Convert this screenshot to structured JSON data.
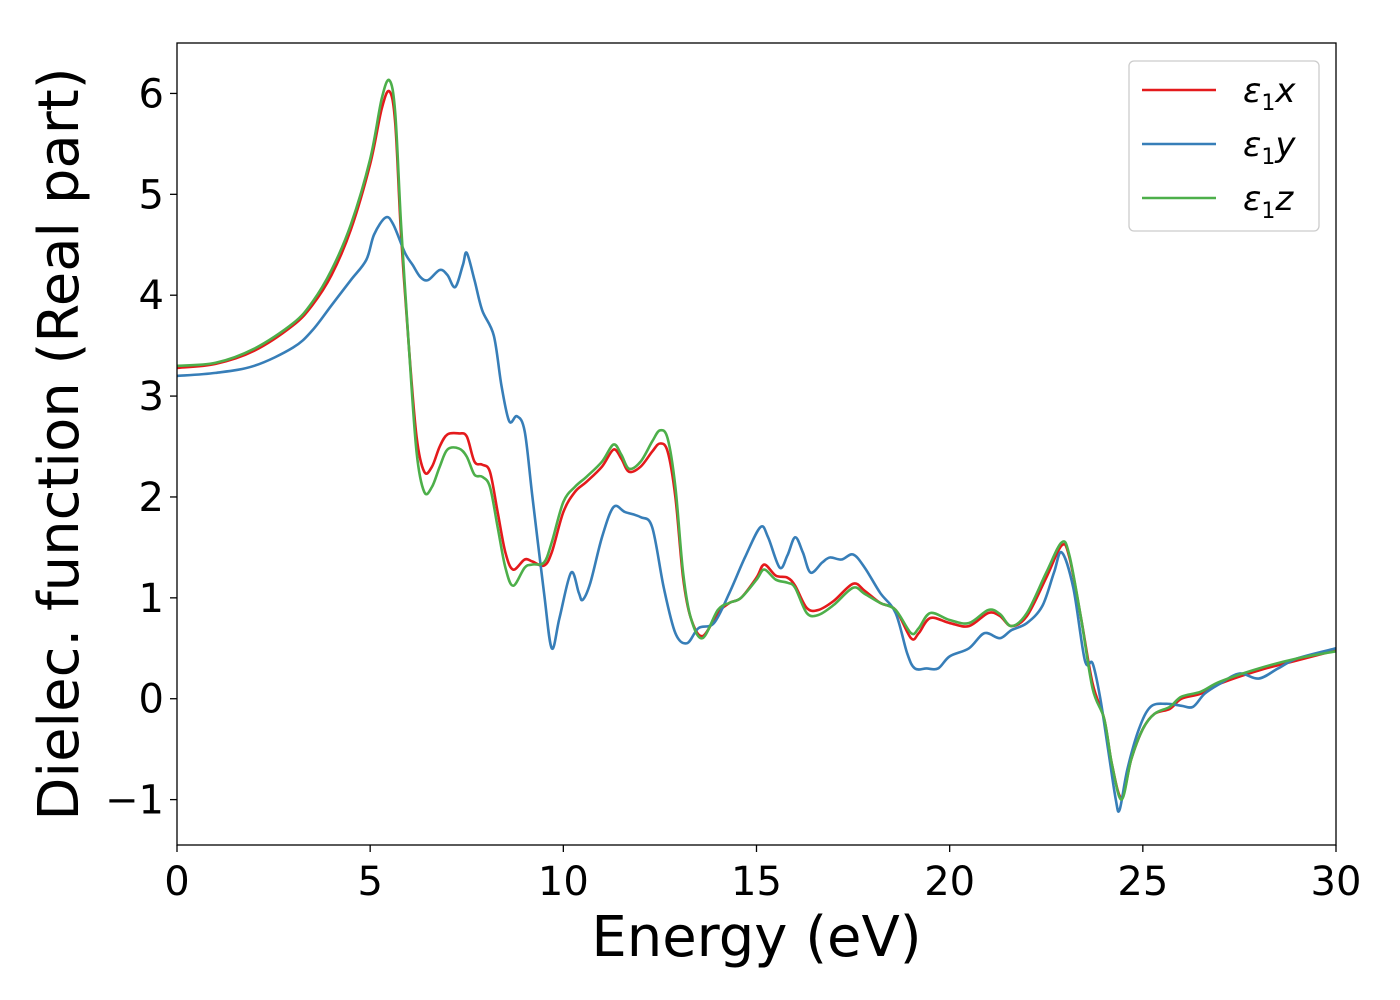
{
  "chart_data": {
    "type": "line",
    "title": "",
    "xlabel": "Energy (eV)",
    "ylabel": "Dielec. function (Real part)",
    "xlim": [
      0,
      30
    ],
    "ylim": [
      -1.45,
      6.5
    ],
    "xticks": [
      0,
      5,
      10,
      15,
      20,
      25,
      30
    ],
    "xtick_labels": [
      "0",
      "5",
      "10",
      "15",
      "20",
      "25",
      "30"
    ],
    "yticks": [
      -1,
      0,
      1,
      2,
      3,
      4,
      5,
      6
    ],
    "ytick_labels": [
      "−1",
      "0",
      "1",
      "2",
      "3",
      "4",
      "5",
      "6"
    ],
    "grid": false,
    "legend_position": "top-right",
    "series": [
      {
        "name": "ε1x",
        "legend_base": "ε",
        "legend_sub": "1",
        "legend_tail": "x",
        "color": "#e41a1c",
        "points": [
          [
            0,
            3.28
          ],
          [
            1,
            3.32
          ],
          [
            2,
            3.45
          ],
          [
            3,
            3.7
          ],
          [
            3.5,
            3.9
          ],
          [
            4,
            4.2
          ],
          [
            4.5,
            4.65
          ],
          [
            5,
            5.3
          ],
          [
            5.3,
            5.85
          ],
          [
            5.5,
            6.02
          ],
          [
            5.65,
            5.7
          ],
          [
            5.8,
            4.6
          ],
          [
            6.0,
            3.5
          ],
          [
            6.2,
            2.6
          ],
          [
            6.4,
            2.25
          ],
          [
            6.6,
            2.3
          ],
          [
            6.8,
            2.5
          ],
          [
            7.0,
            2.62
          ],
          [
            7.3,
            2.63
          ],
          [
            7.5,
            2.6
          ],
          [
            7.7,
            2.35
          ],
          [
            7.9,
            2.32
          ],
          [
            8.1,
            2.25
          ],
          [
            8.3,
            1.85
          ],
          [
            8.5,
            1.45
          ],
          [
            8.7,
            1.28
          ],
          [
            9.0,
            1.38
          ],
          [
            9.2,
            1.36
          ],
          [
            9.5,
            1.32
          ],
          [
            9.7,
            1.45
          ],
          [
            10.0,
            1.85
          ],
          [
            10.3,
            2.05
          ],
          [
            10.6,
            2.15
          ],
          [
            11.0,
            2.3
          ],
          [
            11.3,
            2.47
          ],
          [
            11.5,
            2.38
          ],
          [
            11.7,
            2.25
          ],
          [
            12.0,
            2.3
          ],
          [
            12.3,
            2.45
          ],
          [
            12.5,
            2.53
          ],
          [
            12.7,
            2.45
          ],
          [
            12.9,
            2.0
          ],
          [
            13.1,
            1.2
          ],
          [
            13.3,
            0.8
          ],
          [
            13.6,
            0.62
          ],
          [
            14.0,
            0.85
          ],
          [
            14.3,
            0.95
          ],
          [
            14.6,
            1.0
          ],
          [
            15.0,
            1.2
          ],
          [
            15.2,
            1.33
          ],
          [
            15.5,
            1.22
          ],
          [
            15.8,
            1.2
          ],
          [
            16.0,
            1.12
          ],
          [
            16.3,
            0.9
          ],
          [
            16.6,
            0.88
          ],
          [
            17.0,
            0.97
          ],
          [
            17.5,
            1.14
          ],
          [
            17.8,
            1.07
          ],
          [
            18.2,
            0.95
          ],
          [
            18.6,
            0.88
          ],
          [
            19.0,
            0.6
          ],
          [
            19.2,
            0.65
          ],
          [
            19.5,
            0.8
          ],
          [
            20.0,
            0.75
          ],
          [
            20.5,
            0.72
          ],
          [
            21.0,
            0.85
          ],
          [
            21.3,
            0.82
          ],
          [
            21.6,
            0.72
          ],
          [
            22.0,
            0.82
          ],
          [
            22.5,
            1.2
          ],
          [
            22.9,
            1.52
          ],
          [
            23.1,
            1.4
          ],
          [
            23.4,
            0.8
          ],
          [
            23.7,
            0.15
          ],
          [
            24.0,
            -0.2
          ],
          [
            24.2,
            -0.65
          ],
          [
            24.45,
            -0.98
          ],
          [
            24.7,
            -0.6
          ],
          [
            25.0,
            -0.3
          ],
          [
            25.3,
            -0.15
          ],
          [
            25.7,
            -0.1
          ],
          [
            26.0,
            0.0
          ],
          [
            26.5,
            0.05
          ],
          [
            27.0,
            0.15
          ],
          [
            28.0,
            0.28
          ],
          [
            29.0,
            0.38
          ],
          [
            30.0,
            0.48
          ]
        ]
      },
      {
        "name": "ε1y",
        "legend_base": "ε",
        "legend_sub": "1",
        "legend_tail": "y",
        "color": "#377eb8",
        "points": [
          [
            0,
            3.2
          ],
          [
            1,
            3.23
          ],
          [
            2,
            3.3
          ],
          [
            3,
            3.48
          ],
          [
            3.5,
            3.65
          ],
          [
            4,
            3.9
          ],
          [
            4.5,
            4.15
          ],
          [
            4.9,
            4.35
          ],
          [
            5.1,
            4.6
          ],
          [
            5.4,
            4.77
          ],
          [
            5.6,
            4.7
          ],
          [
            5.9,
            4.42
          ],
          [
            6.1,
            4.3
          ],
          [
            6.3,
            4.18
          ],
          [
            6.5,
            4.15
          ],
          [
            6.8,
            4.25
          ],
          [
            7.0,
            4.2
          ],
          [
            7.2,
            4.08
          ],
          [
            7.4,
            4.3
          ],
          [
            7.5,
            4.42
          ],
          [
            7.7,
            4.15
          ],
          [
            7.9,
            3.85
          ],
          [
            8.2,
            3.6
          ],
          [
            8.4,
            3.1
          ],
          [
            8.6,
            2.75
          ],
          [
            8.8,
            2.8
          ],
          [
            9.0,
            2.65
          ],
          [
            9.2,
            2.0
          ],
          [
            9.5,
            1.05
          ],
          [
            9.7,
            0.5
          ],
          [
            9.9,
            0.8
          ],
          [
            10.2,
            1.25
          ],
          [
            10.4,
            1.05
          ],
          [
            10.5,
            0.98
          ],
          [
            10.7,
            1.15
          ],
          [
            11.0,
            1.6
          ],
          [
            11.3,
            1.9
          ],
          [
            11.6,
            1.85
          ],
          [
            12.0,
            1.8
          ],
          [
            12.3,
            1.7
          ],
          [
            12.6,
            1.1
          ],
          [
            12.9,
            0.65
          ],
          [
            13.2,
            0.55
          ],
          [
            13.5,
            0.7
          ],
          [
            13.9,
            0.75
          ],
          [
            14.3,
            1.05
          ],
          [
            14.7,
            1.4
          ],
          [
            15.1,
            1.7
          ],
          [
            15.3,
            1.6
          ],
          [
            15.6,
            1.3
          ],
          [
            15.8,
            1.42
          ],
          [
            16.0,
            1.6
          ],
          [
            16.2,
            1.45
          ],
          [
            16.4,
            1.25
          ],
          [
            16.7,
            1.35
          ],
          [
            16.9,
            1.4
          ],
          [
            17.2,
            1.38
          ],
          [
            17.5,
            1.43
          ],
          [
            17.8,
            1.3
          ],
          [
            18.2,
            1.05
          ],
          [
            18.6,
            0.85
          ],
          [
            18.9,
            0.45
          ],
          [
            19.1,
            0.3
          ],
          [
            19.4,
            0.3
          ],
          [
            19.7,
            0.3
          ],
          [
            20.0,
            0.42
          ],
          [
            20.5,
            0.5
          ],
          [
            20.9,
            0.65
          ],
          [
            21.3,
            0.6
          ],
          [
            21.6,
            0.68
          ],
          [
            22.0,
            0.75
          ],
          [
            22.4,
            0.92
          ],
          [
            22.7,
            1.25
          ],
          [
            22.9,
            1.45
          ],
          [
            23.2,
            1.1
          ],
          [
            23.5,
            0.38
          ],
          [
            23.7,
            0.35
          ],
          [
            23.9,
            0.0
          ],
          [
            24.1,
            -0.5
          ],
          [
            24.3,
            -1.0
          ],
          [
            24.4,
            -1.1
          ],
          [
            24.6,
            -0.7
          ],
          [
            24.9,
            -0.3
          ],
          [
            25.2,
            -0.08
          ],
          [
            25.6,
            -0.05
          ],
          [
            26.0,
            -0.07
          ],
          [
            26.3,
            -0.08
          ],
          [
            26.6,
            0.05
          ],
          [
            27.0,
            0.15
          ],
          [
            27.5,
            0.25
          ],
          [
            28.0,
            0.2
          ],
          [
            28.5,
            0.3
          ],
          [
            29.0,
            0.4
          ],
          [
            30.0,
            0.5
          ]
        ]
      },
      {
        "name": "ε1z",
        "legend_base": "ε",
        "legend_sub": "1",
        "legend_tail": "z",
        "color": "#4daf4a",
        "points": [
          [
            0,
            3.3
          ],
          [
            1,
            3.33
          ],
          [
            2,
            3.47
          ],
          [
            3,
            3.72
          ],
          [
            3.5,
            3.93
          ],
          [
            4,
            4.25
          ],
          [
            4.5,
            4.7
          ],
          [
            5,
            5.35
          ],
          [
            5.3,
            5.95
          ],
          [
            5.5,
            6.13
          ],
          [
            5.65,
            5.8
          ],
          [
            5.8,
            4.7
          ],
          [
            6.0,
            3.5
          ],
          [
            6.2,
            2.45
          ],
          [
            6.4,
            2.05
          ],
          [
            6.6,
            2.1
          ],
          [
            6.8,
            2.3
          ],
          [
            7.0,
            2.47
          ],
          [
            7.3,
            2.48
          ],
          [
            7.5,
            2.4
          ],
          [
            7.7,
            2.22
          ],
          [
            7.9,
            2.2
          ],
          [
            8.1,
            2.1
          ],
          [
            8.3,
            1.7
          ],
          [
            8.5,
            1.3
          ],
          [
            8.7,
            1.12
          ],
          [
            9.0,
            1.3
          ],
          [
            9.2,
            1.33
          ],
          [
            9.5,
            1.35
          ],
          [
            9.7,
            1.55
          ],
          [
            10.0,
            1.95
          ],
          [
            10.3,
            2.1
          ],
          [
            10.6,
            2.2
          ],
          [
            11.0,
            2.35
          ],
          [
            11.3,
            2.52
          ],
          [
            11.5,
            2.42
          ],
          [
            11.7,
            2.28
          ],
          [
            12.0,
            2.35
          ],
          [
            12.3,
            2.55
          ],
          [
            12.5,
            2.66
          ],
          [
            12.7,
            2.58
          ],
          [
            12.9,
            2.1
          ],
          [
            13.1,
            1.25
          ],
          [
            13.3,
            0.8
          ],
          [
            13.6,
            0.6
          ],
          [
            14.0,
            0.88
          ],
          [
            14.3,
            0.95
          ],
          [
            14.6,
            1.0
          ],
          [
            15.0,
            1.18
          ],
          [
            15.2,
            1.28
          ],
          [
            15.5,
            1.18
          ],
          [
            15.8,
            1.15
          ],
          [
            16.0,
            1.1
          ],
          [
            16.3,
            0.85
          ],
          [
            16.6,
            0.83
          ],
          [
            17.0,
            0.93
          ],
          [
            17.5,
            1.1
          ],
          [
            17.8,
            1.04
          ],
          [
            18.2,
            0.95
          ],
          [
            18.6,
            0.88
          ],
          [
            19.0,
            0.65
          ],
          [
            19.2,
            0.7
          ],
          [
            19.5,
            0.85
          ],
          [
            20.0,
            0.78
          ],
          [
            20.5,
            0.75
          ],
          [
            21.0,
            0.88
          ],
          [
            21.3,
            0.84
          ],
          [
            21.6,
            0.72
          ],
          [
            22.0,
            0.85
          ],
          [
            22.5,
            1.25
          ],
          [
            22.9,
            1.55
          ],
          [
            23.1,
            1.42
          ],
          [
            23.4,
            0.8
          ],
          [
            23.7,
            0.1
          ],
          [
            24.0,
            -0.2
          ],
          [
            24.2,
            -0.65
          ],
          [
            24.45,
            -1.0
          ],
          [
            24.7,
            -0.6
          ],
          [
            25.0,
            -0.3
          ],
          [
            25.3,
            -0.15
          ],
          [
            25.7,
            -0.08
          ],
          [
            26.0,
            0.02
          ],
          [
            26.5,
            0.07
          ],
          [
            27.0,
            0.17
          ],
          [
            28.0,
            0.3
          ],
          [
            29.0,
            0.4
          ],
          [
            30.0,
            0.47
          ]
        ]
      }
    ]
  }
}
